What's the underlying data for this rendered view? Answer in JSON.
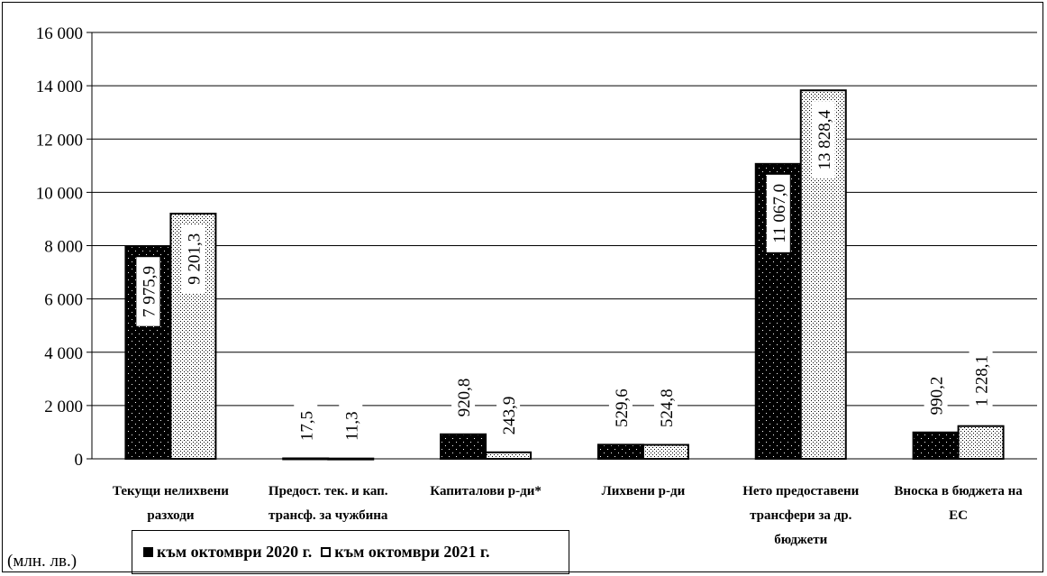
{
  "unit_label": "(млн. лв.)",
  "legend": [
    {
      "label": "към октомври 2020 г.",
      "style": "dark"
    },
    {
      "label": "към октомври  2021 г.",
      "style": "light"
    }
  ],
  "colors": {
    "dark_fill": "#000000",
    "light_fill": "#ffffff",
    "grid": "#000000"
  },
  "chart_data": {
    "type": "bar",
    "categories": [
      [
        "Текущи нелихвени",
        "разходи"
      ],
      [
        "Предост. тек. и кап.",
        "трансф. за чужбина"
      ],
      [
        "Капиталови р-ди*"
      ],
      [
        "Лихвени р-ди"
      ],
      [
        "Нето предоставени",
        "трансфери за др.",
        "бюджети"
      ],
      [
        "Вноска в бюджета на",
        "ЕС"
      ]
    ],
    "series": [
      {
        "name": "към октомври 2020 г.",
        "values": [
          7975.9,
          17.5,
          920.8,
          529.6,
          11067.0,
          990.2
        ],
        "labels": [
          "7 975,9",
          "17,5",
          "920,8",
          "529,6",
          "11 067,0",
          "990,2"
        ]
      },
      {
        "name": "към октомври  2021 г.",
        "values": [
          9201.3,
          11.3,
          243.9,
          524.8,
          13828.4,
          1228.1
        ],
        "labels": [
          "9 201,3",
          "11,3",
          "243,9",
          "524,8",
          "13 828,4",
          "1 228,1"
        ]
      }
    ],
    "ylim": [
      0,
      16000
    ],
    "yticks": [
      0,
      2000,
      4000,
      6000,
      8000,
      10000,
      12000,
      14000,
      16000
    ],
    "ytick_labels": [
      "0",
      "2 000",
      "4 000",
      "6 000",
      "8 000",
      "10 000",
      "12 000",
      "14 000",
      "16 000"
    ],
    "grid": true,
    "legend_position": "bottom-left",
    "data_label_rotation": -90
  }
}
